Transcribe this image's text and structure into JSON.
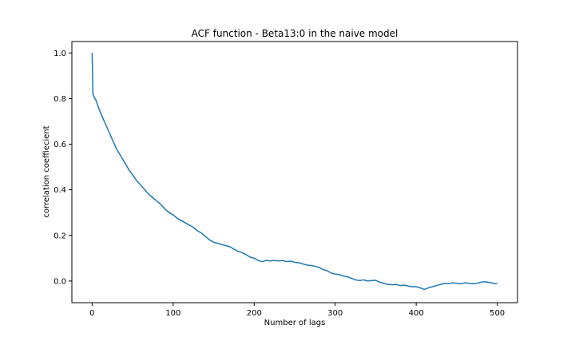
{
  "chart_data": {
    "type": "line",
    "title": "ACF function - Beta13:0 in the naive model",
    "xlabel": "Number of lags",
    "ylabel": "correlation coeffiecient",
    "xlim": [
      -25,
      525
    ],
    "ylim": [
      -0.095,
      1.05
    ],
    "xticks": [
      0,
      100,
      200,
      300,
      400,
      500
    ],
    "xtick_labels": [
      "0",
      "100",
      "200",
      "300",
      "400",
      "500"
    ],
    "yticks": [
      0.0,
      0.2,
      0.4,
      0.6,
      0.8,
      1.0
    ],
    "ytick_labels": [
      "0.0",
      "0.2",
      "0.4",
      "0.6",
      "0.8",
      "1.0"
    ],
    "grid": false,
    "color": "#1f77b4",
    "series": [
      {
        "x": [
          0,
          1,
          2,
          5,
          10,
          15,
          20,
          25,
          30,
          35,
          40,
          45,
          50,
          55,
          60,
          65,
          70,
          75,
          80,
          85,
          90,
          95,
          100,
          105,
          110,
          115,
          120,
          125,
          130,
          135,
          140,
          145,
          150,
          155,
          160,
          165,
          170,
          175,
          180,
          185,
          190,
          195,
          200,
          205,
          210,
          215,
          220,
          225,
          230,
          235,
          240,
          245,
          250,
          255,
          260,
          265,
          270,
          275,
          280,
          285,
          290,
          295,
          300,
          305,
          310,
          315,
          320,
          325,
          330,
          335,
          340,
          345,
          350,
          355,
          360,
          365,
          370,
          375,
          380,
          385,
          390,
          395,
          400,
          405,
          410,
          415,
          420,
          425,
          430,
          435,
          440,
          445,
          450,
          455,
          460,
          465,
          470,
          475,
          480,
          485,
          490,
          495,
          500
        ],
        "y": [
          1.0,
          0.82,
          0.81,
          0.79,
          0.74,
          0.7,
          0.66,
          0.62,
          0.58,
          0.55,
          0.52,
          0.49,
          0.465,
          0.44,
          0.42,
          0.4,
          0.38,
          0.365,
          0.35,
          0.335,
          0.315,
          0.3,
          0.29,
          0.275,
          0.265,
          0.255,
          0.245,
          0.235,
          0.22,
          0.21,
          0.195,
          0.18,
          0.17,
          0.165,
          0.16,
          0.155,
          0.15,
          0.14,
          0.13,
          0.125,
          0.115,
          0.105,
          0.1,
          0.09,
          0.085,
          0.09,
          0.088,
          0.09,
          0.088,
          0.09,
          0.085,
          0.087,
          0.082,
          0.08,
          0.075,
          0.07,
          0.068,
          0.065,
          0.06,
          0.05,
          0.045,
          0.035,
          0.03,
          0.028,
          0.022,
          0.018,
          0.012,
          0.005,
          0.002,
          0.005,
          0.0,
          0.002,
          0.003,
          -0.005,
          -0.01,
          -0.015,
          -0.016,
          -0.015,
          -0.02,
          -0.018,
          -0.022,
          -0.025,
          -0.025,
          -0.03,
          -0.037,
          -0.03,
          -0.025,
          -0.02,
          -0.015,
          -0.01,
          -0.012,
          -0.008,
          -0.01,
          -0.012,
          -0.008,
          -0.01,
          -0.012,
          -0.01,
          -0.005,
          -0.003,
          -0.006,
          -0.01,
          -0.012
        ]
      }
    ]
  }
}
